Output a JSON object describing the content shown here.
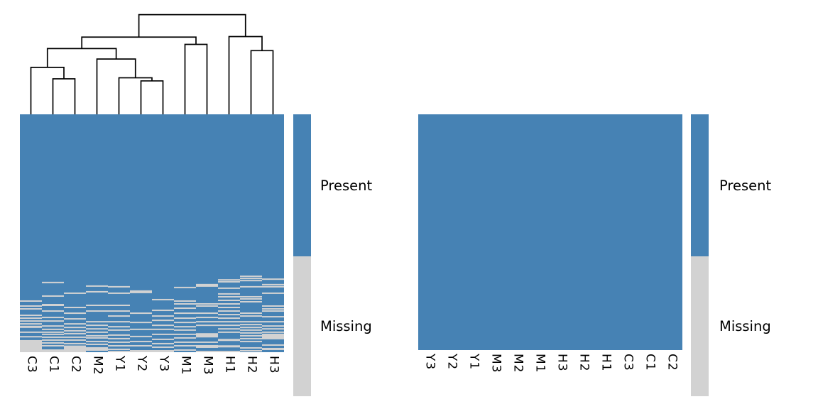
{
  "figure": {
    "background": "#ffffff",
    "colors": {
      "present": "#4682B4",
      "missing": "#D2D2D2",
      "dendrogram": "#000000"
    },
    "legend": {
      "present_label": "Present",
      "missing_label": "Missing"
    }
  },
  "chart_data": [
    {
      "type": "heatmap",
      "panel": "left",
      "title": "",
      "xlabel": "",
      "ylabel": "",
      "columns": [
        "C3",
        "C1",
        "C2",
        "M2",
        "Y1",
        "Y2",
        "Y3",
        "M1",
        "M3",
        "H1",
        "H2",
        "H3"
      ],
      "cell_states": [
        "Present",
        "Missing"
      ],
      "legend_entries": [
        "Present",
        "Missing"
      ],
      "grid": false,
      "dendrogram": {
        "orientation": "top",
        "merges": [
          [
            "L1",
            "L2",
            0.34
          ],
          [
            "L0",
            "m0",
            0.45
          ],
          [
            "L5",
            "L6",
            0.32
          ],
          [
            "L4",
            "m2",
            0.35
          ],
          [
            "L3",
            "m3",
            0.53
          ],
          [
            "m1",
            "m4",
            0.63
          ],
          [
            "L7",
            "L8",
            0.67
          ],
          [
            "m5",
            "m6",
            0.74
          ],
          [
            "L10",
            "L11",
            0.61
          ],
          [
            "L9",
            "m8",
            0.745
          ],
          [
            "m7",
            "m9",
            0.955
          ]
        ]
      },
      "missing_stripes": [
        {
          "col": "C3",
          "stripes": [
            [
              0.782
            ],
            [
              0.803
            ],
            [
              0.815
            ],
            [
              0.842
            ],
            [
              0.854
            ],
            [
              0.866
            ],
            [
              0.878
            ],
            [
              0.889,
              0.009
            ],
            [
              0.913
            ],
            [
              0.932
            ],
            [
              0.949,
              0.051
            ]
          ]
        },
        {
          "col": "C1",
          "stripes": [
            [
              0.704
            ],
            [
              0.761
            ],
            [
              0.797,
              0.009
            ],
            [
              0.824
            ],
            [
              0.851
            ],
            [
              0.866
            ],
            [
              0.887
            ],
            [
              0.901
            ],
            [
              0.913
            ],
            [
              0.922
            ],
            [
              0.934
            ],
            [
              0.946
            ],
            [
              0.958
            ],
            [
              0.97
            ],
            [
              0.988,
              0.012
            ]
          ]
        },
        {
          "col": "C2",
          "stripes": [
            [
              0.749
            ],
            [
              0.809
            ],
            [
              0.833
            ],
            [
              0.857
            ],
            [
              0.878
            ],
            [
              0.893
            ],
            [
              0.907
            ],
            [
              0.919
            ],
            [
              0.934
            ],
            [
              0.946
            ],
            [
              0.961
            ],
            [
              0.972,
              0.028
            ]
          ]
        },
        {
          "col": "M2",
          "stripes": [
            [
              0.719
            ],
            [
              0.743
            ],
            [
              0.8
            ],
            [
              0.824
            ],
            [
              0.869
            ],
            [
              0.884
            ],
            [
              0.899
            ],
            [
              0.913
            ],
            [
              0.928
            ],
            [
              0.937
            ],
            [
              0.952
            ],
            [
              0.964
            ],
            [
              0.979,
              0.015
            ]
          ]
        },
        {
          "col": "Y1",
          "stripes": [
            [
              0.722
            ],
            [
              0.749
            ],
            [
              0.8
            ],
            [
              0.824
            ],
            [
              0.845
            ],
            [
              0.869
            ],
            [
              0.89
            ],
            [
              0.904
            ],
            [
              0.925
            ],
            [
              0.94
            ],
            [
              0.955
            ],
            [
              0.97
            ],
            [
              0.985
            ],
            [
              0.994
            ]
          ]
        },
        {
          "col": "Y2",
          "stripes": [
            [
              0.74,
              0.012
            ],
            [
              0.833
            ],
            [
              0.872
            ],
            [
              0.901
            ],
            [
              0.931
            ],
            [
              0.952
            ],
            [
              0.97
            ],
            [
              0.991,
              0.009
            ]
          ]
        },
        {
          "col": "Y3",
          "stripes": [
            [
              0.776
            ],
            [
              0.821
            ],
            [
              0.845
            ],
            [
              0.863
            ],
            [
              0.884
            ],
            [
              0.901
            ],
            [
              0.922
            ],
            [
              0.943
            ],
            [
              0.961
            ],
            [
              0.976
            ],
            [
              0.991,
              0.009
            ]
          ]
        },
        {
          "col": "M1",
          "stripes": [
            [
              0.725
            ],
            [
              0.782
            ],
            [
              0.794
            ],
            [
              0.812
            ],
            [
              0.833
            ],
            [
              0.854
            ],
            [
              0.872
            ],
            [
              0.89
            ],
            [
              0.904
            ],
            [
              0.922
            ],
            [
              0.937
            ],
            [
              0.955
            ],
            [
              0.97
            ],
            [
              0.988
            ]
          ]
        },
        {
          "col": "M3",
          "stripes": [
            [
              0.713,
              0.012
            ],
            [
              0.794
            ],
            [
              0.803
            ],
            [
              0.833
            ],
            [
              0.851
            ],
            [
              0.869
            ],
            [
              0.884
            ],
            [
              0.92,
              0.018
            ],
            [
              0.955
            ],
            [
              0.97,
              0.012
            ],
            [
              0.994
            ]
          ]
        },
        {
          "col": "H1",
          "stripes": [
            [
              0.693
            ],
            [
              0.701
            ],
            [
              0.728
            ],
            [
              0.752
            ],
            [
              0.764
            ],
            [
              0.779
            ],
            [
              0.794
            ],
            [
              0.809
            ],
            [
              0.824
            ],
            [
              0.839
            ],
            [
              0.854
            ],
            [
              0.869
            ],
            [
              0.884
            ],
            [
              0.899
            ],
            [
              0.913
            ],
            [
              0.944,
              0.009
            ],
            [
              0.971,
              0.009
            ],
            [
              0.994
            ]
          ]
        },
        {
          "col": "H2",
          "stripes": [
            [
              0.678
            ],
            [
              0.687
            ],
            [
              0.696
            ],
            [
              0.722
            ],
            [
              0.764
            ],
            [
              0.773
            ],
            [
              0.785
            ],
            [
              0.833
            ],
            [
              0.845
            ],
            [
              0.869
            ],
            [
              0.881
            ],
            [
              0.893
            ],
            [
              0.904
            ],
            [
              0.916
            ],
            [
              0.928
            ],
            [
              0.94
            ],
            [
              0.952
            ],
            [
              0.979
            ],
            [
              0.991
            ]
          ]
        },
        {
          "col": "H3",
          "stripes": [
            [
              0.69
            ],
            [
              0.713
            ],
            [
              0.722
            ],
            [
              0.749
            ],
            [
              0.803
            ],
            [
              0.815
            ],
            [
              0.824
            ],
            [
              0.848
            ],
            [
              0.869
            ],
            [
              0.887
            ],
            [
              0.899
            ],
            [
              0.913
            ],
            [
              0.922,
              0.024
            ],
            [
              0.967
            ],
            [
              0.982,
              0.009
            ]
          ]
        }
      ]
    },
    {
      "type": "heatmap",
      "panel": "right",
      "title": "",
      "xlabel": "",
      "ylabel": "",
      "columns": [
        "Y3",
        "Y2",
        "Y1",
        "M3",
        "M2",
        "M1",
        "H3",
        "H2",
        "H1",
        "C3",
        "C1",
        "C2"
      ],
      "cell_states": [
        "Present"
      ],
      "legend_entries": [
        "Present",
        "Missing"
      ],
      "grid": false,
      "missing_stripes": []
    }
  ]
}
